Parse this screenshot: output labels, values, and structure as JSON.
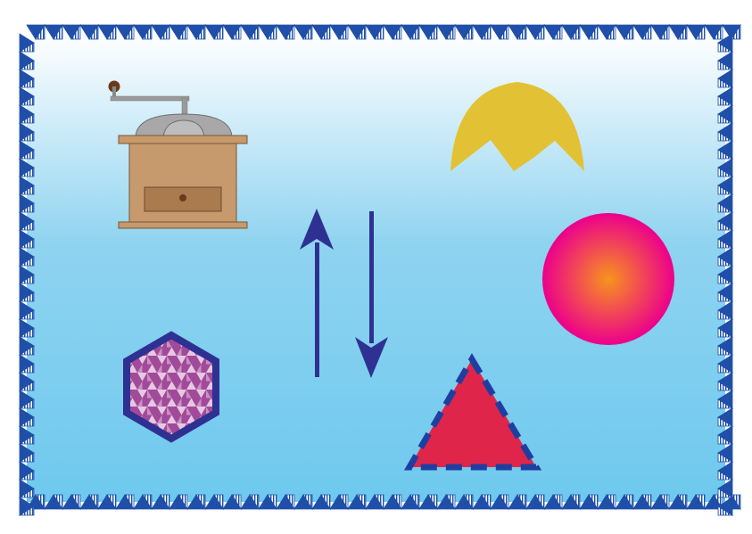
{
  "colors": {
    "sky_top": "#ffffff",
    "sky_mid": "#8fd3f0",
    "sky_bottom": "#6ec9ee",
    "border_blue": "#1f4fa8",
    "border_light": "#ffffff",
    "grinder_wood": "#c69a6d",
    "grinder_dark_wood": "#a97b4f",
    "grinder_metal": "#a8a8a8",
    "grinder_knob": "#6b3a1e",
    "sun_yellow": "#e2c234",
    "circle_center": "#f7941d",
    "circle_edge": "#ec008c",
    "arrow_blue": "#2e3192",
    "triangle_red": "#e0254a",
    "triangle_dash": "#1f3fa0",
    "hexagon_border": "#2e3192",
    "hexagon_fill_a": "#a24a9a",
    "hexagon_fill_b": "#e7c8e3"
  },
  "shapes": [
    {
      "name": "coffee-grinder",
      "icon": "coffee-grinder-icon"
    },
    {
      "name": "crown-shape",
      "icon": "yellow-crown-icon"
    },
    {
      "name": "gradient-circle",
      "icon": "pink-orange-circle-icon"
    },
    {
      "name": "up-arrow",
      "icon": "up-arrow-icon"
    },
    {
      "name": "down-arrow",
      "icon": "down-arrow-icon"
    },
    {
      "name": "patterned-hexagon",
      "icon": "hexagon-icon"
    },
    {
      "name": "dashed-triangle",
      "icon": "triangle-icon"
    }
  ]
}
